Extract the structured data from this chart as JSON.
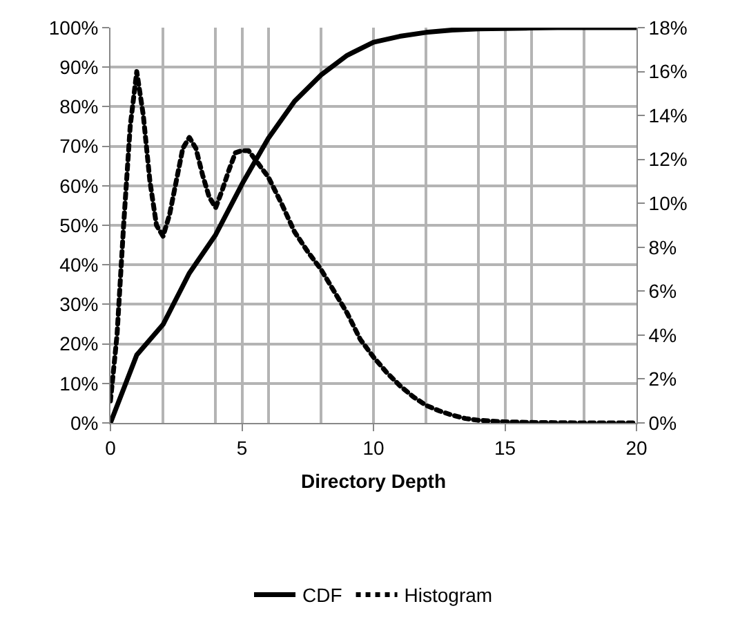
{
  "chart_data": {
    "type": "line",
    "xlabel": "Directory Depth",
    "x": [
      0,
      1,
      2,
      3,
      4,
      5,
      6,
      7,
      8,
      9,
      10,
      11,
      12,
      13,
      14,
      15,
      16,
      17,
      18,
      19,
      20
    ],
    "series": [
      {
        "name": "CDF",
        "color": "#000000",
        "line_style": "solid",
        "values": [
          0,
          17.2,
          24.9,
          37.9,
          47.6,
          60.4,
          72,
          81.4,
          88,
          93,
          96.3,
          97.8,
          98.8,
          99.4,
          99.7,
          99.8,
          99.9,
          100,
          100,
          100,
          100
        ]
      },
      {
        "name": "Histogram",
        "color": "#000000",
        "line_style": "dotted",
        "axis": "y2",
        "x": [
          0,
          0.25,
          0.5,
          0.75,
          1,
          1.25,
          1.5,
          1.75,
          2,
          2.25,
          2.5,
          2.75,
          3,
          3.25,
          3.5,
          3.75,
          4,
          4.25,
          4.5,
          4.75,
          5,
          5.25,
          5.5,
          6,
          6.5,
          7,
          7.5,
          8,
          8.5,
          9,
          9.5,
          10,
          10.5,
          11,
          11.5,
          12,
          12.5,
          13,
          13.5,
          14,
          14.5,
          15,
          16,
          17,
          18,
          19,
          20
        ],
        "values": [
          1,
          4,
          9,
          13.5,
          16,
          14,
          11,
          9,
          8.5,
          9.5,
          11,
          12.5,
          13,
          12.5,
          11.3,
          10.3,
          9.8,
          10.6,
          11.5,
          12.3,
          12.4,
          12.4,
          12,
          11.2,
          10,
          8.7,
          7.8,
          7,
          6,
          5,
          3.8,
          3,
          2.3,
          1.7,
          1.2,
          0.8,
          0.55,
          0.35,
          0.2,
          0.12,
          0.08,
          0.05,
          0.02,
          0.01,
          0,
          0,
          0
        ]
      }
    ],
    "xlim": [
      0,
      20
    ],
    "xticks": [
      0,
      {
        "value": 2,
        "label": null
      },
      {
        "value": 4,
        "label": null
      },
      5,
      {
        "value": 6,
        "label": null
      },
      {
        "value": 8,
        "label": null
      },
      10,
      {
        "value": 12,
        "label": null
      },
      {
        "value": 14,
        "label": null
      },
      15,
      {
        "value": 16,
        "label": null
      },
      {
        "value": 18,
        "label": null
      },
      20
    ],
    "ylim": [
      0,
      100
    ],
    "yticks": [
      {
        "value": 0,
        "label": "0%"
      },
      {
        "value": 10,
        "label": "10%"
      },
      {
        "value": 20,
        "label": "20%"
      },
      {
        "value": 30,
        "label": "30%"
      },
      {
        "value": 40,
        "label": "40%"
      },
      {
        "value": 50,
        "label": "50%"
      },
      {
        "value": 60,
        "label": "60%"
      },
      {
        "value": 70,
        "label": "70%"
      },
      {
        "value": 80,
        "label": "80%"
      },
      {
        "value": 90,
        "label": "90%"
      },
      {
        "value": 100,
        "label": "100%"
      }
    ],
    "y2lim": [
      0,
      18
    ],
    "y2ticks": [
      {
        "value": 0,
        "label": "0%"
      },
      {
        "value": 2,
        "label": "2%"
      },
      {
        "value": 4,
        "label": "4%"
      },
      {
        "value": 6,
        "label": "6%"
      },
      {
        "value": 8,
        "label": "8%"
      },
      {
        "value": 10,
        "label": "10%"
      },
      {
        "value": 12,
        "label": "12%"
      },
      {
        "value": 14,
        "label": "14%"
      },
      {
        "value": 16,
        "label": "16%"
      },
      {
        "value": 18,
        "label": "18%"
      }
    ],
    "grid": true,
    "legend": "bottom",
    "marker": "none"
  }
}
